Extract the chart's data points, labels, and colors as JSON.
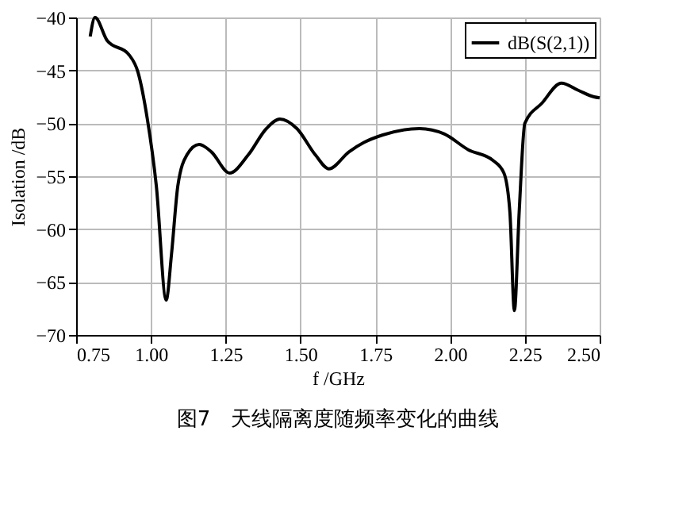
{
  "chart_data": {
    "type": "line",
    "xlabel": "f /GHz",
    "ylabel": "Isolation /dB",
    "annotations": [
      "图7　天线隔离度随频率变化的曲线"
    ],
    "xlim": [
      0.75,
      2.5
    ],
    "xticks": [
      {
        "value": 0.75,
        "label": "0.75"
      },
      {
        "value": 1.0,
        "label": "1.00"
      },
      {
        "value": 1.25,
        "label": "1.25"
      },
      {
        "value": 1.5,
        "label": "1.50"
      },
      {
        "value": 1.75,
        "label": "1.75"
      },
      {
        "value": 2.0,
        "label": "2.00"
      },
      {
        "value": 2.25,
        "label": "2.25"
      },
      {
        "value": 2.5,
        "label": "2.50"
      }
    ],
    "ylim": [
      -70,
      -40
    ],
    "yticks": [
      -70,
      -65,
      -60,
      -55,
      -50,
      -45,
      -40
    ],
    "grid": true,
    "legend": "top right",
    "marker": "none",
    "line_style": "solid",
    "series": [
      {
        "name": "dB(S(2,1))",
        "color": "#000000",
        "x": [
          0.797,
          0.813,
          0.854,
          0.926,
          0.957,
          0.988,
          1.018,
          1.051,
          1.069,
          1.09,
          1.12,
          1.161,
          1.202,
          1.263,
          1.325,
          1.386,
          1.431,
          1.488,
          1.55,
          1.595,
          1.662,
          1.713,
          1.775,
          1.898,
          1.98,
          2.061,
          2.143,
          2.18,
          2.2,
          2.215,
          2.231,
          2.25,
          2.307,
          2.372,
          2.43,
          2.481,
          2.5
        ],
        "values": [
          -41.8,
          -40,
          -42.2,
          -43.5,
          -45.2,
          -49.6,
          -55.9,
          -66.7,
          -62.3,
          -55.9,
          -53,
          -52,
          -52.7,
          -54.7,
          -53,
          -50.5,
          -49.6,
          -50.5,
          -53,
          -54.3,
          -52.7,
          -51.8,
          -51.1,
          -50.5,
          -51,
          -52.5,
          -53.5,
          -54.7,
          -58.4,
          -67.7,
          -58.4,
          -50,
          -48.1,
          -46.2,
          -46.9,
          -47.5,
          -47.6
        ]
      }
    ]
  }
}
